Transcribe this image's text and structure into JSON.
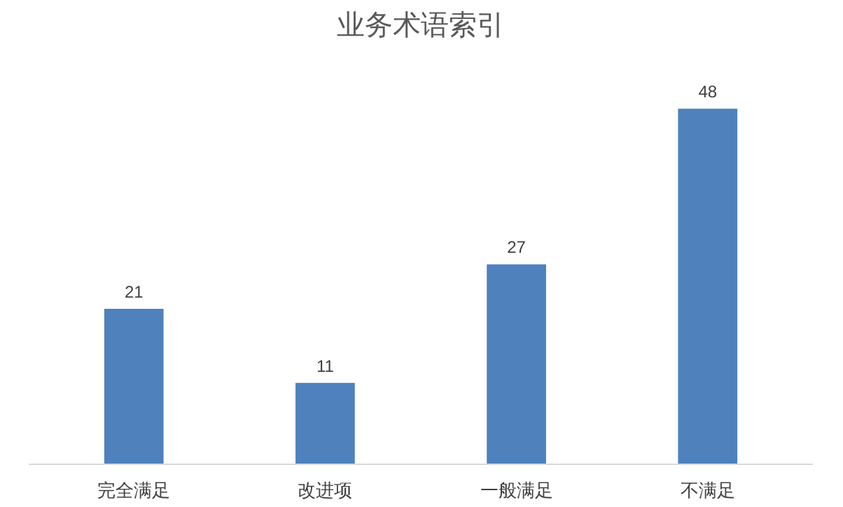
{
  "chart_data": {
    "type": "bar",
    "title": "业务术语索引",
    "categories": [
      "完全满足",
      "改进项",
      "一般满足",
      "不满足"
    ],
    "values": [
      21,
      11,
      27,
      48
    ],
    "color": "#4f81bd",
    "data_labels": true
  }
}
